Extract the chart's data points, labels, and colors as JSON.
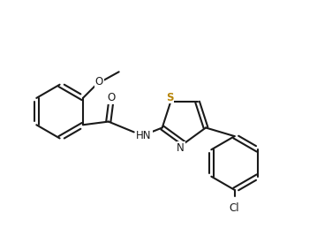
{
  "bg_color": "#ffffff",
  "line_color": "#1a1a1a",
  "line_width": 1.5,
  "figsize": [
    3.76,
    2.67
  ],
  "dpi": 100,
  "S_color": "#b8860b",
  "xlim": [
    0,
    10
  ],
  "ylim": [
    0,
    7
  ]
}
